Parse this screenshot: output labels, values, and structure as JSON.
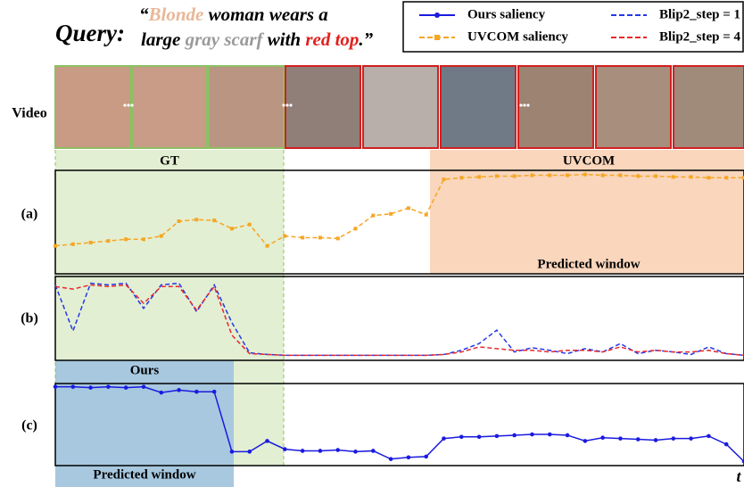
{
  "query": {
    "label": "Query:",
    "line1": [
      {
        "text": "“",
        "color": "#000000"
      },
      {
        "text": "Blonde",
        "color": "#e8b898"
      },
      {
        "text": " woman wears a",
        "color": "#000000"
      }
    ],
    "line2": [
      {
        "text": "large ",
        "color": "#000000"
      },
      {
        "text": "gray scarf",
        "color": "#9a9a9a"
      },
      {
        "text": " with ",
        "color": "#000000"
      },
      {
        "text": "red top",
        "color": "#e0201c"
      },
      {
        "text": ".”",
        "color": "#000000"
      }
    ]
  },
  "row_labels": {
    "video": "Video",
    "a": "(a)",
    "b": "(b)",
    "c": "(c)"
  },
  "regions": {
    "gt": "GT",
    "uvcom": "UVCOM",
    "uvcom_window": "Predicted window",
    "ours": "Ours",
    "ours_window": "Predicted window"
  },
  "time_label": "t",
  "chart_data": [
    {
      "type": "line",
      "ylim": [
        0,
        1
      ],
      "series": [
        {
          "name": "UVCOM saliency",
          "color": "#f5a623",
          "dash": true,
          "marker": "square",
          "values": [
            0.08,
            0.1,
            0.12,
            0.14,
            0.16,
            0.16,
            0.2,
            0.38,
            0.4,
            0.39,
            0.29,
            0.34,
            0.08,
            0.2,
            0.18,
            0.18,
            0.17,
            0.29,
            0.45,
            0.47,
            0.54,
            0.46,
            0.89,
            0.91,
            0.92,
            0.93,
            0.93,
            0.94,
            0.94,
            0.94,
            0.95,
            0.94,
            0.94,
            0.93,
            0.93,
            0.92,
            0.92,
            0.91,
            0.91,
            0.91
          ]
        }
      ]
    },
    {
      "type": "line",
      "ylim": [
        0,
        1
      ],
      "series": [
        {
          "name": "Blip2_step = 1",
          "color": "#2438e8",
          "dash": true,
          "marker": "none",
          "values": [
            0.9,
            0.35,
            0.92,
            0.9,
            0.92,
            0.62,
            0.9,
            0.92,
            0.58,
            0.9,
            0.45,
            0.09,
            0.07,
            0.06,
            0.06,
            0.06,
            0.06,
            0.06,
            0.06,
            0.06,
            0.06,
            0.06,
            0.07,
            0.12,
            0.2,
            0.36,
            0.1,
            0.15,
            0.12,
            0.08,
            0.14,
            0.1,
            0.2,
            0.08,
            0.12,
            0.1,
            0.07,
            0.16,
            0.08,
            0.06
          ]
        },
        {
          "name": "Blip2_step = 4",
          "color": "#e8282b",
          "dash": true,
          "marker": "none",
          "values": [
            0.88,
            0.85,
            0.9,
            0.88,
            0.9,
            0.68,
            0.88,
            0.88,
            0.6,
            0.88,
            0.3,
            0.08,
            0.07,
            0.06,
            0.06,
            0.06,
            0.06,
            0.06,
            0.06,
            0.06,
            0.06,
            0.06,
            0.07,
            0.1,
            0.16,
            0.14,
            0.12,
            0.12,
            0.1,
            0.12,
            0.12,
            0.1,
            0.16,
            0.1,
            0.12,
            0.1,
            0.1,
            0.12,
            0.08,
            0.06
          ]
        }
      ]
    },
    {
      "type": "line",
      "ylim": [
        0,
        1
      ],
      "series": [
        {
          "name": "Ours saliency",
          "color": "#1a1ae0",
          "dash": false,
          "marker": "circle",
          "values": [
            0.96,
            0.96,
            0.95,
            0.96,
            0.95,
            0.96,
            0.89,
            0.92,
            0.9,
            0.9,
            0.17,
            0.17,
            0.3,
            0.2,
            0.18,
            0.18,
            0.19,
            0.17,
            0.18,
            0.08,
            0.1,
            0.11,
            0.33,
            0.35,
            0.35,
            0.36,
            0.37,
            0.38,
            0.38,
            0.37,
            0.3,
            0.34,
            0.33,
            0.32,
            0.31,
            0.33,
            0.33,
            0.36,
            0.26,
            0.05
          ]
        }
      ]
    }
  ]
}
